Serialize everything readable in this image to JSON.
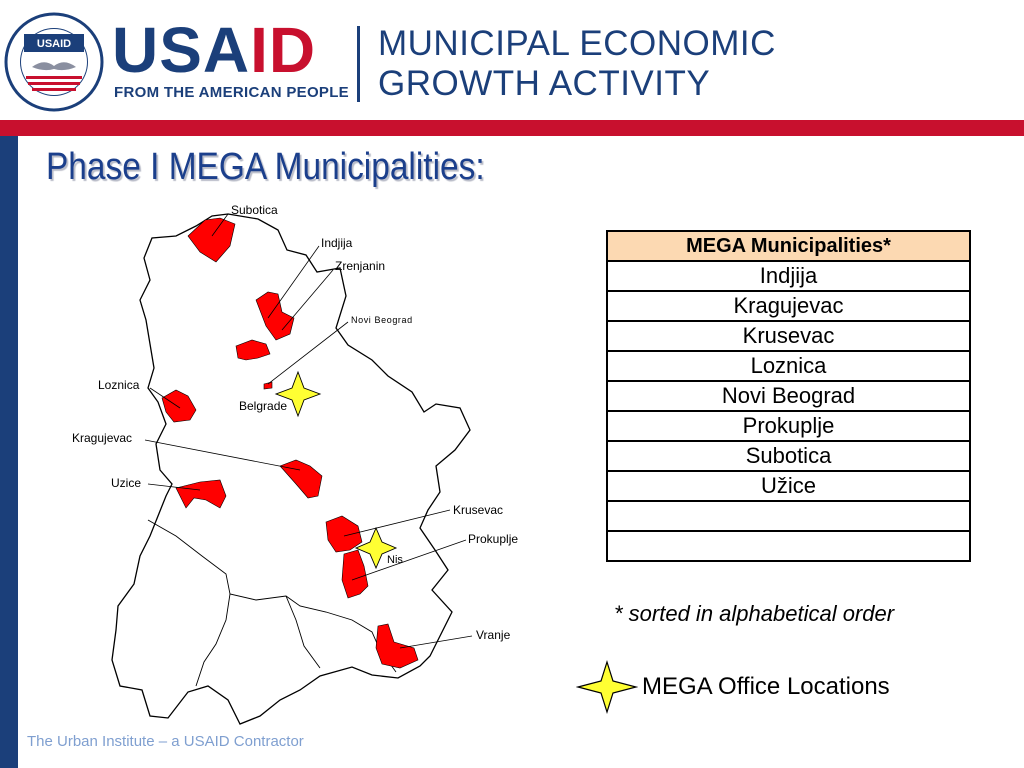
{
  "header": {
    "seal_text": "UNITED STATES AGENCY INTERNATIONAL DEVELOPMENT",
    "seal_label": "USAID",
    "brand": "USAID",
    "tagline": "FROM THE AMERICAN PEOPLE",
    "activity_line1": "MUNICIPAL ECONOMIC",
    "activity_line2": "GROWTH ACTIVITY",
    "brand_blue": "#1b3f7a",
    "brand_red": "#c8102e"
  },
  "title": "Phase I MEGA Municipalities:",
  "map": {
    "labels": {
      "subotica": "Subotica",
      "indjija": "Indjija",
      "zrenjanin": "Zrenjanin",
      "novi_beograd": "Novi Beograd",
      "loznica": "Loznica",
      "belgrade": "Belgrade",
      "kragujevac": "Kragujevac",
      "uzice": "Uzice",
      "krusevac": "Krusevac",
      "prokuplje": "Prokuplje",
      "nis": "Nis",
      "vranje": "Vranje"
    },
    "highlight_color": "#ff0000",
    "office_star_color": "#ffff33"
  },
  "table": {
    "header": "MEGA Municipalities*",
    "rows": [
      "Indjija",
      "Kragujevac",
      "Krusevac",
      "Loznica",
      "Novi Beograd",
      "Prokuplje",
      "Subotica",
      "Užice",
      "",
      ""
    ],
    "header_bg": "#fcd9b2"
  },
  "note": "* sorted in alphabetical order",
  "legend": {
    "label": "MEGA Office Locations"
  },
  "footer": "The Urban Institute – a USAID Contractor"
}
